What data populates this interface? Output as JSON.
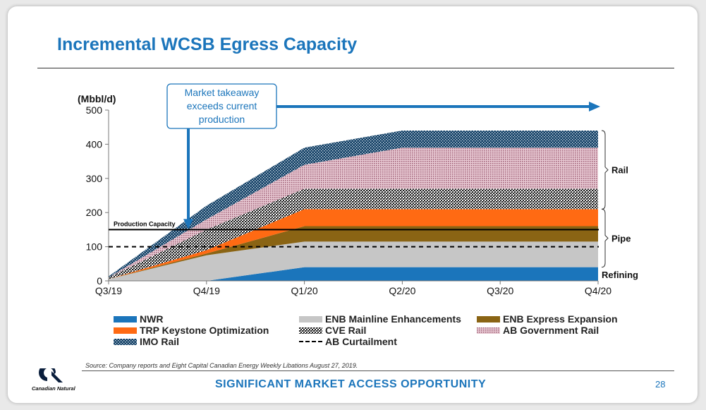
{
  "slide": {
    "title": "Incremental WCSB Egress Capacity",
    "source": "Source: Company reports and Eight Capital Canadian Energy Weekly Libations August 27, 2019.",
    "footer": "SIGNIFICANT MARKET ACCESS OPPORTUNITY",
    "page_number": "28",
    "logo_text": "Canadian Natural"
  },
  "chart_data": {
    "type": "area",
    "stacked": true,
    "ylabel": "(Mbbl/d)",
    "ylim": [
      0,
      500
    ],
    "yticks": [
      0,
      100,
      200,
      300,
      400,
      500
    ],
    "x": [
      "Q3/19",
      "Q4/19",
      "Q1/20",
      "Q2/20",
      "Q3/20",
      "Q4/20"
    ],
    "grid": false,
    "series": [
      {
        "name": "NWR",
        "color": "#1b75bb",
        "values": [
          0,
          0,
          40,
          40,
          40,
          40
        ]
      },
      {
        "name": "ENB Mainline Enhancements",
        "color": "#c6c6c6",
        "values": [
          5,
          75,
          75,
          75,
          75,
          75
        ]
      },
      {
        "name": "ENB Express Expansion",
        "color": "#8a6414",
        "values": [
          0,
          5,
          45,
          45,
          45,
          45
        ]
      },
      {
        "name": "TRP Keystone Optimization",
        "color": "#ff6a13",
        "values": [
          0,
          10,
          50,
          50,
          50,
          50
        ]
      },
      {
        "name": "CVE Rail",
        "color": "#2b2b2b",
        "values": [
          5,
          60,
          60,
          60,
          60,
          60
        ]
      },
      {
        "name": "AB Government Rail",
        "color": "#cf9aac",
        "values": [
          0,
          30,
          70,
          120,
          120,
          120
        ]
      },
      {
        "name": "IMO Rail",
        "color": "#0f3d63",
        "values": [
          3,
          40,
          50,
          50,
          50,
          50
        ]
      }
    ],
    "reference_lines": [
      {
        "name": "Production Capacity",
        "value": 150,
        "style": "solid"
      },
      {
        "name": "AB Curtailment",
        "value": 100,
        "style": "dashed"
      }
    ],
    "brackets": [
      {
        "label": "Rail",
        "from": 210,
        "to": 440
      },
      {
        "label": "Pipe",
        "from": 40,
        "to": 210
      }
    ],
    "bottom_label": "Refining",
    "annotation": [
      "Market takeaway",
      "exceeds current",
      "production"
    ]
  }
}
